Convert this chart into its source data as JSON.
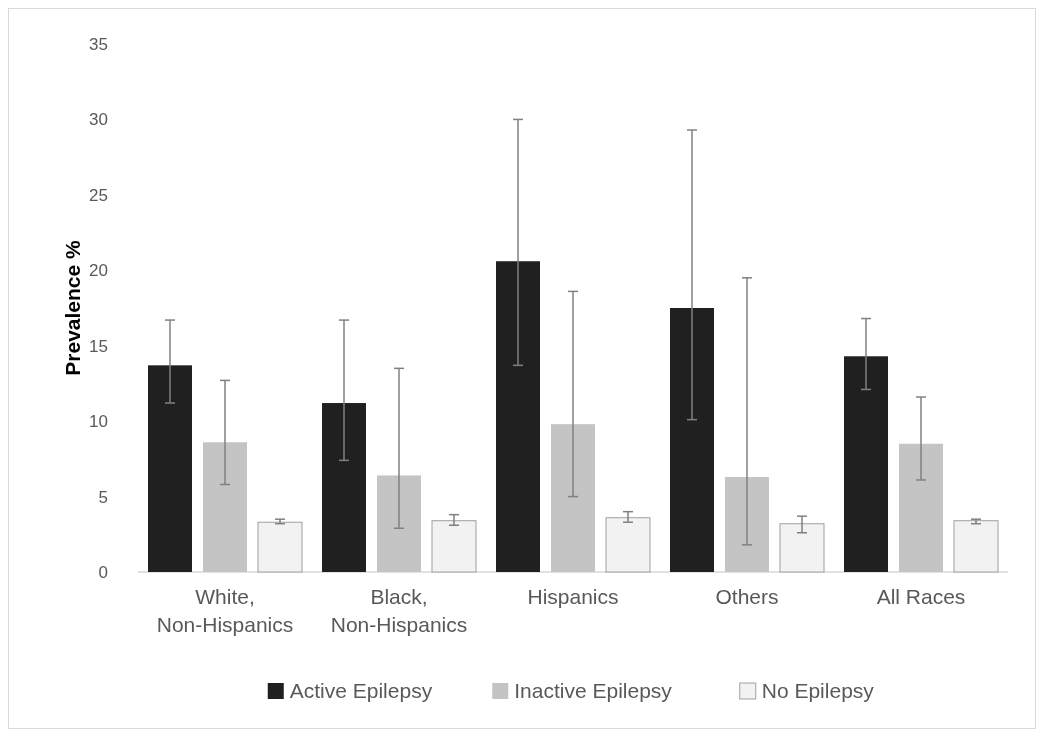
{
  "chart_data": {
    "type": "bar",
    "ylabel": "Prevalence %",
    "categories": [
      "White, Non-Hispanics",
      "Black, Non-Hispanics",
      "Hispanics",
      "Others",
      "All Races"
    ],
    "series": [
      {
        "name": "Active Epilepsy",
        "color": "#202020",
        "values": [
          13.7,
          11.2,
          20.6,
          17.5,
          14.3
        ],
        "errors": [
          [
            11.2,
            16.7
          ],
          [
            7.4,
            16.7
          ],
          [
            13.7,
            30.0
          ],
          [
            10.1,
            29.3
          ],
          [
            12.1,
            16.8
          ]
        ]
      },
      {
        "name": "Inactive Epilepsy",
        "color": "#c4c4c4",
        "values": [
          8.6,
          6.4,
          9.8,
          6.3,
          8.5
        ],
        "errors": [
          [
            5.8,
            12.7
          ],
          [
            2.9,
            13.5
          ],
          [
            5.0,
            18.6
          ],
          [
            1.8,
            19.5
          ],
          [
            6.1,
            11.6
          ]
        ]
      },
      {
        "name": "No Epilepsy",
        "color": "#f2f2f2",
        "values": [
          3.3,
          3.4,
          3.6,
          3.2,
          3.4
        ],
        "errors": [
          [
            3.2,
            3.5
          ],
          [
            3.1,
            3.8
          ],
          [
            3.3,
            4.0
          ],
          [
            2.6,
            3.7
          ],
          [
            3.2,
            3.5
          ]
        ]
      }
    ],
    "ylim": [
      0,
      35
    ],
    "yticks": [
      0,
      5,
      10,
      15,
      20,
      25,
      30,
      35
    ],
    "grid": false,
    "legend": "bottom"
  }
}
